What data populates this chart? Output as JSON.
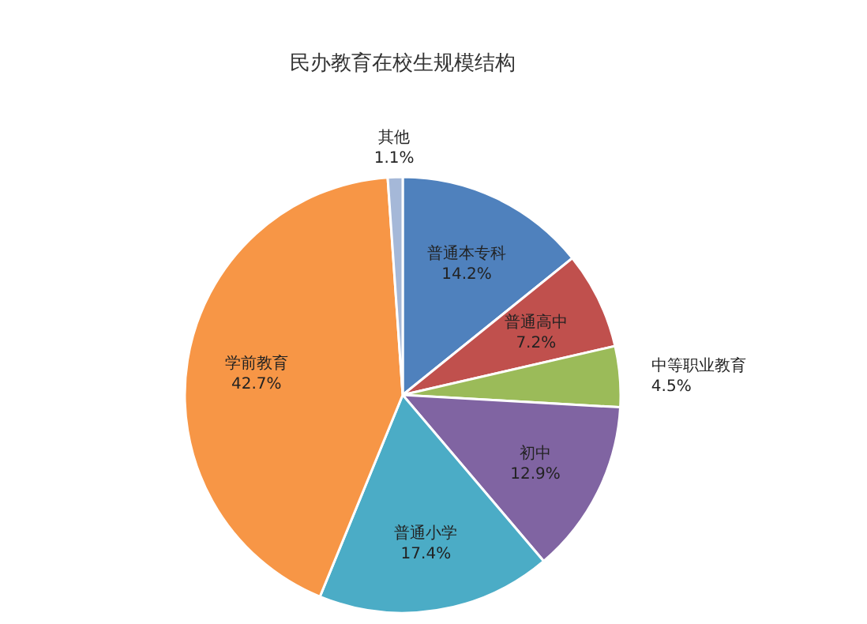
{
  "chart_data": {
    "type": "pie",
    "title": "民办教育在校生规模结构",
    "categories": [
      "普通本专科",
      "普通高中",
      "中等职业教育",
      "初中",
      "普通小学",
      "学前教育",
      "其他"
    ],
    "values": [
      14.2,
      7.2,
      4.5,
      12.9,
      17.4,
      42.7,
      1.1
    ],
    "colors": [
      "#4f81bd",
      "#c0504d",
      "#9bbb59",
      "#8064a2",
      "#4bacc6",
      "#f79646",
      "#a5b8d8"
    ],
    "value_labels": [
      "14.2%",
      "7.2%",
      "4.5%",
      "12.9%",
      "17.4%",
      "42.7%",
      "1.1%"
    ]
  }
}
